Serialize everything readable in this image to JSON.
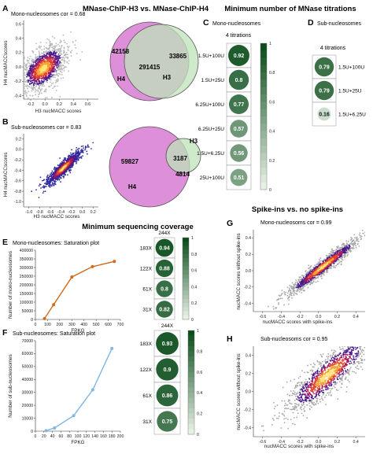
{
  "titles": {
    "top": "MNase-ChIP-H3 vs. MNase-ChIP-H4",
    "titrations": "Minimum number of MNase titrations",
    "coverage": "Minimum sequencing coverage",
    "spikeins": "Spike-ins vs. no spike-ins"
  },
  "panels": {
    "A": {
      "letter": "A",
      "subtitle": "Mono-nucleosomes cor = 0.68",
      "xlabel": "H3 nucMACC scores",
      "ylabel": "H4 nucMACCscores",
      "xticks": [
        "-0.2",
        "0.0",
        "0.2",
        "0.4",
        "0.6"
      ],
      "yticks": [
        "-0.4",
        "-0.2",
        "0.0",
        "0.2",
        "0.4",
        "0.6"
      ]
    },
    "B": {
      "letter": "B",
      "subtitle": "Sub-nucleosomes cor = 0.83",
      "xlabel": "H3 nucMACC scores",
      "ylabel": "H4 nucMACCscores",
      "xticks": [
        "-1.0",
        "-0.8",
        "-0.6",
        "-0.4",
        "-0.2",
        "0.0",
        "0.2"
      ],
      "yticks": [
        "-1.0",
        "-0.8",
        "-0.6",
        "-0.4",
        "-0.2",
        "0.0",
        "0.2"
      ]
    },
    "C": {
      "letter": "C",
      "subtitle": "Mono-nucleosomes",
      "header": "4 titrations"
    },
    "D": {
      "letter": "D",
      "subtitle": "Sub-nucleosomes",
      "header": "4 titrations"
    },
    "E": {
      "letter": "E",
      "subtitle": "Mono-nucleosomes: Saturation plot"
    },
    "F": {
      "letter": "F",
      "subtitle": "Sub-nucleosomes: Saturation plot"
    },
    "G": {
      "letter": "G",
      "subtitle": "Mono-nucleosoms cor = 0.99",
      "xlabel": "nucMACC scores with spike-ins",
      "ylabel": "nucMACC scores without spike-ins",
      "xticks": [
        "-0.6",
        "-0.4",
        "-0.2",
        "0.0",
        "0.2",
        "0.4"
      ],
      "yticks": [
        "-0.4",
        "-0.2",
        "0.0",
        "0.2",
        "0.4"
      ]
    },
    "H": {
      "letter": "H",
      "subtitle": "Sub-nucleosoms cor = 0.95",
      "xlabel": "nucMACC scores with spike-ins",
      "ylabel": "nucMACC scores without spike-ins",
      "xticks": [
        "-0.6",
        "-0.4",
        "-0.2",
        "0.0",
        "0.2",
        "0.4"
      ],
      "yticks": [
        "-0.4",
        "-0.2",
        "0.0",
        "0.2",
        "0.4"
      ]
    }
  },
  "colors": {
    "h4_venn": "#de8fd9",
    "h3_venn": "#bde3b8",
    "mono_line": "#d06b1e",
    "sub_line": "#7fb6e3",
    "scatter_gray": "#9a9a9a",
    "heat_scale": [
      "#f2f9ef",
      "#0b4d1c"
    ]
  },
  "chart_data": [
    {
      "type": "scatter",
      "panel": "A",
      "description_source": "density scatter",
      "xlim": [
        -0.3,
        0.75
      ],
      "ylim": [
        -0.45,
        0.65
      ],
      "center": [
        -0.02,
        -0.02
      ]
    },
    {
      "type": "venn",
      "panel": "A",
      "sets": [
        "H4",
        "H3"
      ],
      "values": {
        "H4_only": 42158,
        "both": 291415,
        "H3_only": 33865
      }
    },
    {
      "type": "scatter",
      "panel": "B",
      "xlim": [
        -1.1,
        0.3
      ],
      "ylim": [
        -1.1,
        0.3
      ],
      "center": [
        -0.35,
        -0.35
      ]
    },
    {
      "type": "venn",
      "panel": "B",
      "sets": [
        "H4",
        "H3"
      ],
      "values": {
        "H4_only": 59827,
        "both": 3187,
        "H3_only": 4814
      }
    },
    {
      "type": "heatmap",
      "panel": "C",
      "column": "4 titrations",
      "rows": [
        "1.5U+100U",
        "1.5U+25U",
        "6.25U+100U",
        "6.25U+25U",
        "1.5U+6.25U",
        "25U+100U"
      ],
      "values": [
        0.92,
        0.8,
        0.77,
        0.57,
        0.56,
        0.51
      ],
      "colorbar": [
        0,
        0.2,
        0.4,
        0.6,
        0.8,
        1
      ]
    },
    {
      "type": "heatmap",
      "panel": "D",
      "column": "4 titrations",
      "rows": [
        "1.5U+100U",
        "1.5U+25U",
        "1.5U+6.25U"
      ],
      "values": [
        0.79,
        0.79,
        0.16
      ]
    },
    {
      "type": "line",
      "panel": "E",
      "xlabel": "FPKG",
      "ylabel": "Number of mono-nucleosomes",
      "x": [
        75,
        150,
        300,
        470,
        650
      ],
      "y": [
        5000,
        85000,
        245000,
        305000,
        335000
      ],
      "xlim": [
        0,
        700
      ],
      "ylim": [
        0,
        400000
      ],
      "xticks": [
        0,
        100,
        200,
        300,
        400,
        500,
        600,
        700
      ],
      "yticks": [
        0,
        50000,
        100000,
        150000,
        200000,
        250000,
        300000,
        350000,
        400000
      ]
    },
    {
      "type": "heatmap",
      "panel": "E",
      "column": "244X",
      "rows": [
        "183X",
        "122X",
        "61X",
        "31X"
      ],
      "values": [
        0.94,
        0.88,
        0.8,
        0.82
      ],
      "colorbar": [
        0,
        0.2,
        0.4,
        0.6,
        0.8,
        1
      ]
    },
    {
      "type": "line",
      "panel": "F",
      "xlabel": "FPKG",
      "ylabel": "Number of sub-nucleosomes",
      "x": [
        25,
        45,
        90,
        135,
        180
      ],
      "y": [
        400,
        2500,
        12000,
        32000,
        64000
      ],
      "xlim": [
        0,
        200
      ],
      "ylim": [
        0,
        70000
      ],
      "xticks": [
        0,
        20,
        40,
        60,
        80,
        100,
        120,
        140,
        160,
        180,
        200
      ],
      "yticks": [
        0,
        10000,
        20000,
        30000,
        40000,
        50000,
        60000,
        70000
      ]
    },
    {
      "type": "heatmap",
      "panel": "F",
      "column": "244X",
      "rows": [
        "183X",
        "122X",
        "61X",
        "31X"
      ],
      "values": [
        0.93,
        0.9,
        0.86,
        0.75
      ],
      "colorbar": [
        0,
        0.2,
        0.4,
        0.6,
        0.8,
        1
      ]
    },
    {
      "type": "scatter",
      "panel": "G",
      "xlim": [
        -0.7,
        0.5
      ],
      "ylim": [
        -0.5,
        0.5
      ],
      "center": [
        0.05,
        0.05
      ]
    },
    {
      "type": "scatter",
      "panel": "H",
      "xlim": [
        -0.7,
        0.5
      ],
      "ylim": [
        -0.5,
        0.5
      ],
      "center": [
        0.1,
        0.18
      ]
    }
  ]
}
